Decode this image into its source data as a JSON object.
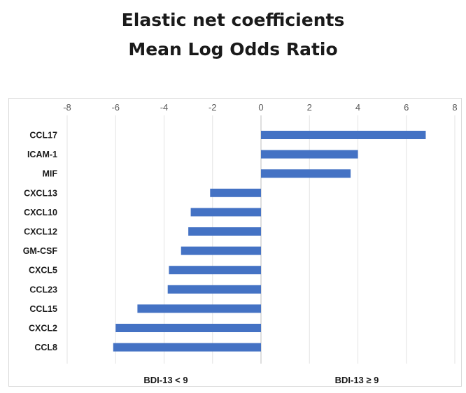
{
  "chart_data": {
    "type": "bar",
    "orientation": "horizontal",
    "title": "Elastic net coefficients",
    "subtitle": "Mean Log Odds Ratio",
    "categories": [
      "CCL17",
      "ICAM-1",
      "MIF",
      "CXCL13",
      "CXCL10",
      "CXCL12",
      "GM-CSF",
      "CXCL5",
      "CCL23",
      "CCL15",
      "CXCL2",
      "CCL8"
    ],
    "values": [
      6.8,
      4.0,
      3.7,
      -2.1,
      -2.9,
      -3.0,
      -3.3,
      -3.8,
      -3.85,
      -5.1,
      -6.0,
      -6.1
    ],
    "xlim": [
      -8,
      8
    ],
    "xticks": [
      -8,
      -6,
      -4,
      -2,
      0,
      2,
      4,
      6,
      8
    ],
    "x_axis_position": "top",
    "gridlines": true,
    "bar_color": "#4472c4",
    "annotations": [
      "BDI-13 < 9",
      "BDI-13 ≥ 9"
    ]
  }
}
